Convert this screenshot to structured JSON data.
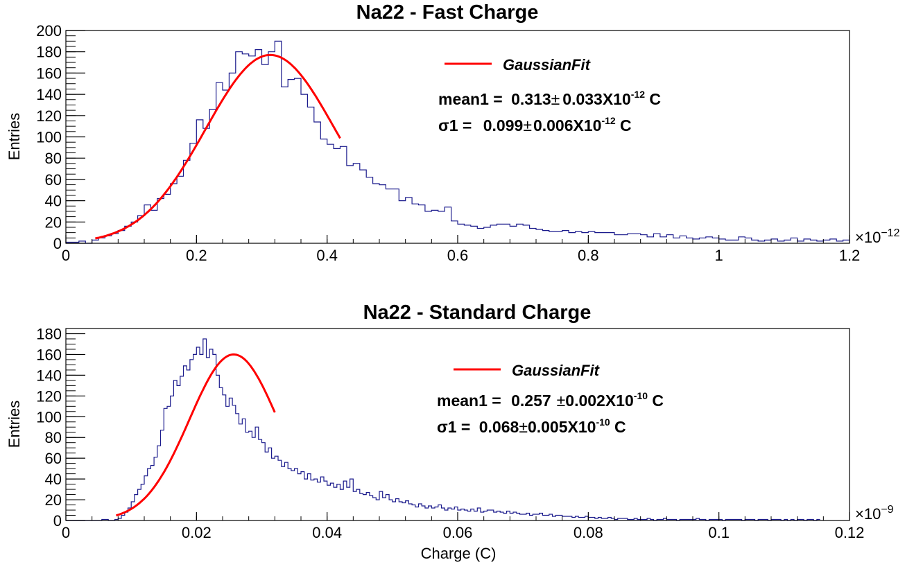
{
  "chart_data": [
    {
      "type": "histogram",
      "title": "Na22 - Fast Charge",
      "xlabel": "",
      "ylabel": "Entries",
      "x_multiplier": "×10",
      "x_multiplier_exp": "−12",
      "xlim": [
        0,
        1.2
      ],
      "ylim": [
        0,
        200
      ],
      "xticks": [
        0,
        0.2,
        0.4,
        0.6,
        0.8,
        1,
        1.2
      ],
      "xtick_labels": [
        "0",
        "0.2",
        "0.4",
        "0.6",
        "0.8",
        "1",
        "1.2"
      ],
      "yticks": [
        0,
        20,
        40,
        60,
        80,
        100,
        120,
        140,
        160,
        180,
        200
      ],
      "ytick_labels": [
        "0",
        "20",
        "40",
        "60",
        "80",
        "100",
        "120",
        "140",
        "160",
        "180",
        "200"
      ],
      "bin_width": 0.01,
      "bin_start": 0.0,
      "counts": [
        1,
        1,
        2,
        0,
        3,
        5,
        7,
        9,
        12,
        16,
        20,
        26,
        36,
        31,
        42,
        46,
        56,
        63,
        78,
        94,
        116,
        108,
        126,
        151,
        144,
        160,
        180,
        178,
        176,
        182,
        168,
        180,
        190,
        147,
        154,
        155,
        140,
        128,
        114,
        98,
        93,
        89,
        91,
        73,
        75,
        69,
        62,
        56,
        55,
        51,
        51,
        40,
        43,
        37,
        36,
        30,
        31,
        30,
        34,
        21,
        18,
        17,
        16,
        14,
        15,
        17,
        18,
        18,
        16,
        18,
        17,
        14,
        13,
        12,
        11,
        11,
        12,
        10,
        11,
        10,
        11,
        10,
        10,
        10,
        8,
        8,
        9,
        9,
        8,
        6,
        9,
        6,
        8,
        5,
        7,
        5,
        4,
        5,
        6,
        5,
        4,
        3,
        3,
        6,
        5,
        3,
        2,
        3,
        4,
        2,
        3,
        5,
        2,
        4,
        3,
        2,
        3,
        4,
        2,
        3
      ],
      "fit": {
        "mu": 0.313,
        "sigma": 0.099,
        "amplitude": 177,
        "x_from": 0.045,
        "x_to": 0.42
      },
      "legend": {
        "label": "GaussianFit",
        "position": "top-center",
        "color": "#ff0000"
      },
      "hist_color": "#1a1a8c",
      "stats": {
        "line1": {
          "label": "mean1 = ",
          "value": "0.313",
          "pm": "±",
          "error": "0.033",
          "x10": "X10",
          "exp": "-12",
          "unit": " C"
        },
        "line2": {
          "label": "σ1 = ",
          "value": "0.099",
          "pm": "±",
          "error": "0.006",
          "x10": "X10",
          "exp": "-12",
          "unit": " C"
        }
      }
    },
    {
      "type": "histogram",
      "title": "Na22 - Standard Charge",
      "xlabel": "Charge (C)",
      "ylabel": "Entries",
      "x_multiplier": "×10",
      "x_multiplier_exp": "−9",
      "xlim": [
        0,
        0.12
      ],
      "ylim": [
        0,
        185
      ],
      "xticks": [
        0,
        0.02,
        0.04,
        0.06,
        0.08,
        0.1,
        0.12
      ],
      "xtick_labels": [
        "0",
        "0.02",
        "0.04",
        "0.06",
        "0.08",
        "0.1",
        "0.12"
      ],
      "yticks": [
        0,
        20,
        40,
        60,
        80,
        100,
        120,
        140,
        160,
        180
      ],
      "ytick_labels": [
        "0",
        "20",
        "40",
        "60",
        "80",
        "100",
        "120",
        "140",
        "160",
        "180"
      ],
      "bin_width": 0.0005,
      "bin_start": 0.0,
      "counts": [
        0,
        0,
        0,
        0,
        0,
        0,
        0,
        0,
        0,
        0,
        0,
        1,
        1,
        0,
        0,
        1,
        2,
        5,
        8,
        12,
        18,
        25,
        30,
        35,
        43,
        50,
        53,
        61,
        72,
        87,
        108,
        110,
        120,
        135,
        130,
        139,
        149,
        145,
        155,
        160,
        167,
        160,
        175,
        157,
        165,
        160,
        140,
        128,
        121,
        110,
        118,
        111,
        103,
        93,
        98,
        85,
        86,
        80,
        90,
        78,
        75,
        66,
        70,
        60,
        62,
        58,
        52,
        56,
        50,
        48,
        50,
        45,
        47,
        40,
        45,
        39,
        40,
        37,
        42,
        38,
        34,
        36,
        32,
        35,
        30,
        38,
        32,
        40,
        28,
        30,
        26,
        25,
        27,
        24,
        22,
        20,
        28,
        22,
        25,
        20,
        18,
        21,
        18,
        17,
        19,
        16,
        15,
        13,
        16,
        14,
        12,
        14,
        12,
        13,
        15,
        12,
        10,
        12,
        11,
        13,
        10,
        11,
        10,
        9,
        11,
        9,
        12,
        8,
        9,
        10,
        10,
        8,
        9,
        8,
        7,
        9,
        7,
        8,
        7,
        6,
        6,
        7,
        5,
        6,
        6,
        7,
        5,
        5,
        6,
        4,
        5,
        5,
        4,
        4,
        4,
        3,
        4,
        3,
        3,
        4,
        3,
        3,
        2,
        3,
        2,
        2,
        3,
        2,
        1,
        2,
        2,
        2,
        1,
        1,
        2,
        1,
        1,
        1,
        2,
        1,
        0,
        1,
        1,
        2,
        1,
        1,
        1,
        0,
        1,
        1,
        1,
        1,
        1,
        2,
        1,
        1,
        0,
        1,
        1,
        1,
        1,
        0,
        1,
        1,
        1,
        1,
        1,
        0,
        1,
        1,
        1,
        0,
        1,
        1,
        1,
        0,
        1,
        1,
        1,
        0,
        1,
        0,
        1,
        0,
        1,
        1,
        0,
        1,
        1,
        0,
        1
      ],
      "fit": {
        "mu": 0.0257,
        "sigma": 0.0068,
        "amplitude": 160,
        "x_from": 0.0077,
        "x_to": 0.032
      },
      "legend": {
        "label": "GaussianFit",
        "position": "top-center",
        "color": "#ff0000"
      },
      "hist_color": "#1a1a8c",
      "stats": {
        "line1": {
          "label": "mean1 = ",
          "value": "0.257",
          "pm": "±",
          "error": "0.002",
          "x10": "X10",
          "exp": "-10",
          "unit": " C"
        },
        "line2": {
          "label": "σ1 = ",
          "value": "0.068",
          "pm": "±",
          "error": "0.005",
          "x10": "X10",
          "exp": "-10",
          "unit": " C"
        }
      }
    }
  ]
}
